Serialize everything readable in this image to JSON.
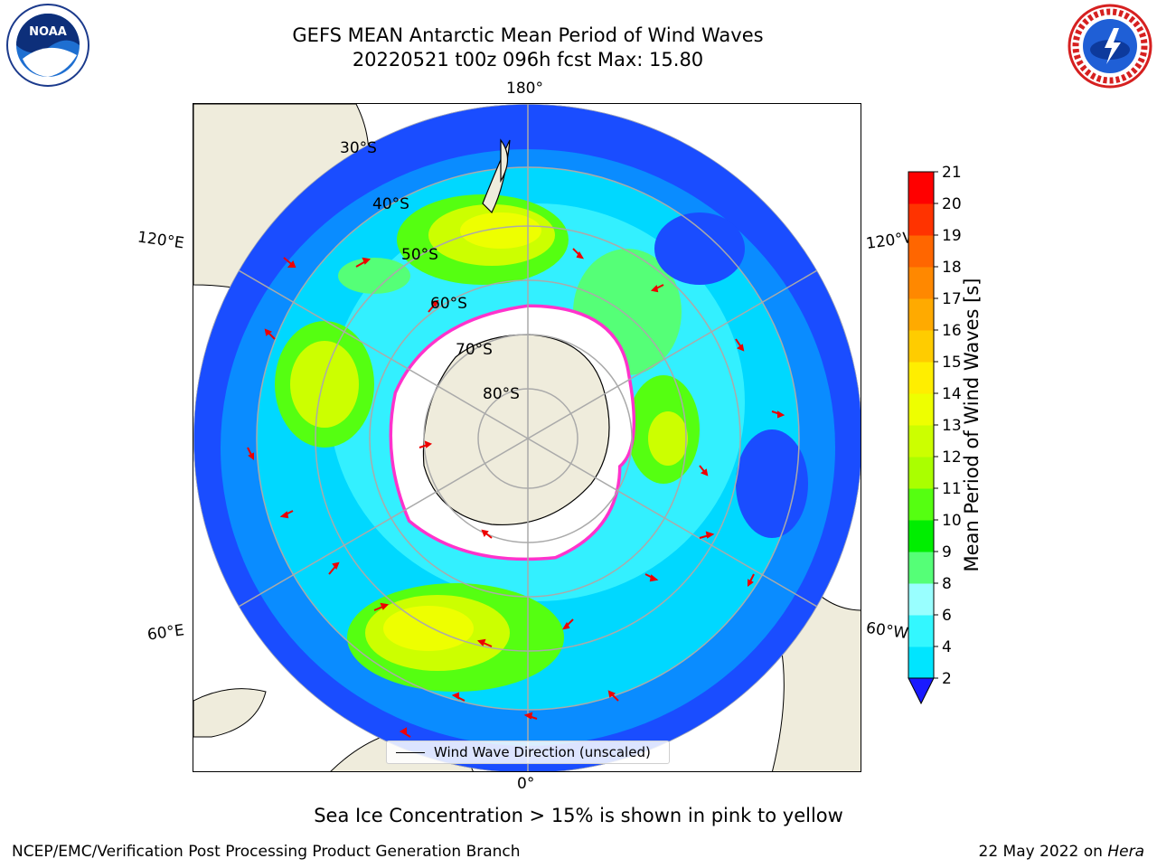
{
  "title": {
    "line1": "GEFS MEAN Antarctic Mean Period of Wind Waves",
    "line2": "20220521 t00z 096h fcst   Max: 15.80"
  },
  "map": {
    "lon_labels": [
      "180°",
      "0°",
      "120°E",
      "60°E",
      "120°W",
      "60°W"
    ],
    "lat_labels": [
      "30°S",
      "40°S",
      "50°S",
      "60°S",
      "70°S",
      "80°S"
    ],
    "legend_label": "Wind Wave Direction (unscaled)"
  },
  "colorbar": {
    "label": "Mean Period of Wind Waves [s]",
    "ticks": [
      "2",
      "4",
      "6",
      "8",
      "9",
      "10",
      "11",
      "12",
      "13",
      "14",
      "15",
      "16",
      "17",
      "18",
      "19",
      "20",
      "21"
    ],
    "colors": [
      "#0055ff",
      "#00e5ff",
      "#33f7ff",
      "#99ffff",
      "#55ff77",
      "#00ee00",
      "#55ff11",
      "#aaff00",
      "#ccff00",
      "#eeff00",
      "#ffee00",
      "#ffcc00",
      "#ffaa00",
      "#ff8800",
      "#ff6600",
      "#ff3300",
      "#ff0000"
    ],
    "under_color": "#1a1aff"
  },
  "footer_note": "Sea Ice Concentration > 15% is shown in pink to yellow",
  "credit": "NCEP/EMC/Verification Post Processing Product Generation Branch",
  "date": {
    "text": "22 May 2022 on ",
    "host": "Hera"
  },
  "logos": {
    "left": "noaa-logo",
    "right": "nws-logo"
  }
}
